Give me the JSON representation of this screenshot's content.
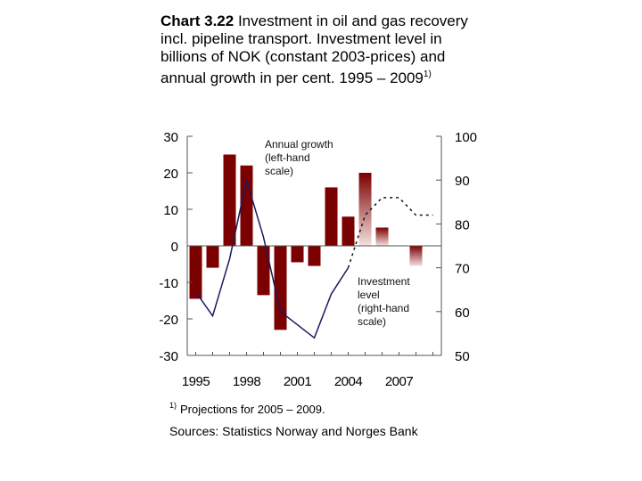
{
  "title": {
    "number": "Chart 3.22",
    "text": "Investment in oil and gas recovery incl. pipeline transport. Investment level in billions of NOK (constant 2003-prices) and annual growth in per cent. 1995 – 2009",
    "superscript": "1)"
  },
  "annotations": {
    "growth": [
      "Annual growth",
      "(left-hand",
      "scale)"
    ],
    "level": [
      "Investment",
      "level",
      "(right-hand",
      "scale)"
    ]
  },
  "footnote": {
    "marker": "1)",
    "text": "Projections for 2005 – 2009."
  },
  "source": "Sources: Statistics Norway and Norges Bank",
  "colors": {
    "bar": "#7b0000",
    "bar_projection_light": "#f4e0e0",
    "line": "#1a1a5e",
    "axis": "#555555"
  },
  "chart_data": {
    "type": "bar",
    "x": [
      1995,
      1996,
      1997,
      1998,
      1999,
      2000,
      2001,
      2002,
      2003,
      2004,
      2005,
      2006,
      2007,
      2008,
      2009
    ],
    "x_tick_labels": [
      "1995",
      "1998",
      "2001",
      "2004",
      "2007"
    ],
    "x_tick_years": [
      1995,
      1998,
      2001,
      2004,
      2007
    ],
    "y_left": {
      "range": [
        -30,
        30
      ],
      "ticks": [
        "30",
        "20",
        "10",
        "0",
        "-10",
        "-20",
        "-30"
      ]
    },
    "y_right": {
      "range": [
        50,
        100
      ],
      "ticks": [
        "100",
        "90",
        "80",
        "70",
        "60",
        "50"
      ]
    },
    "series": [
      {
        "name": "Annual growth",
        "type": "bar",
        "axis": "left",
        "values": [
          -14.5,
          -6,
          25,
          22,
          -13.5,
          -23,
          -4.5,
          -5.5,
          16,
          8,
          20,
          5,
          null,
          -5.5,
          null
        ],
        "projection_from": 2005
      },
      {
        "name": "Investment level",
        "type": "line",
        "axis": "right",
        "x": [
          1995,
          1996,
          1997,
          1998,
          1999,
          2000,
          2001,
          2002,
          2003,
          2004,
          2005,
          2006,
          2007,
          2008,
          2009
        ],
        "values": [
          64.5,
          59,
          72,
          90,
          77,
          60,
          57,
          54,
          64,
          70,
          82,
          86,
          86,
          82,
          82
        ],
        "projection_from": 2004
      }
    ]
  }
}
